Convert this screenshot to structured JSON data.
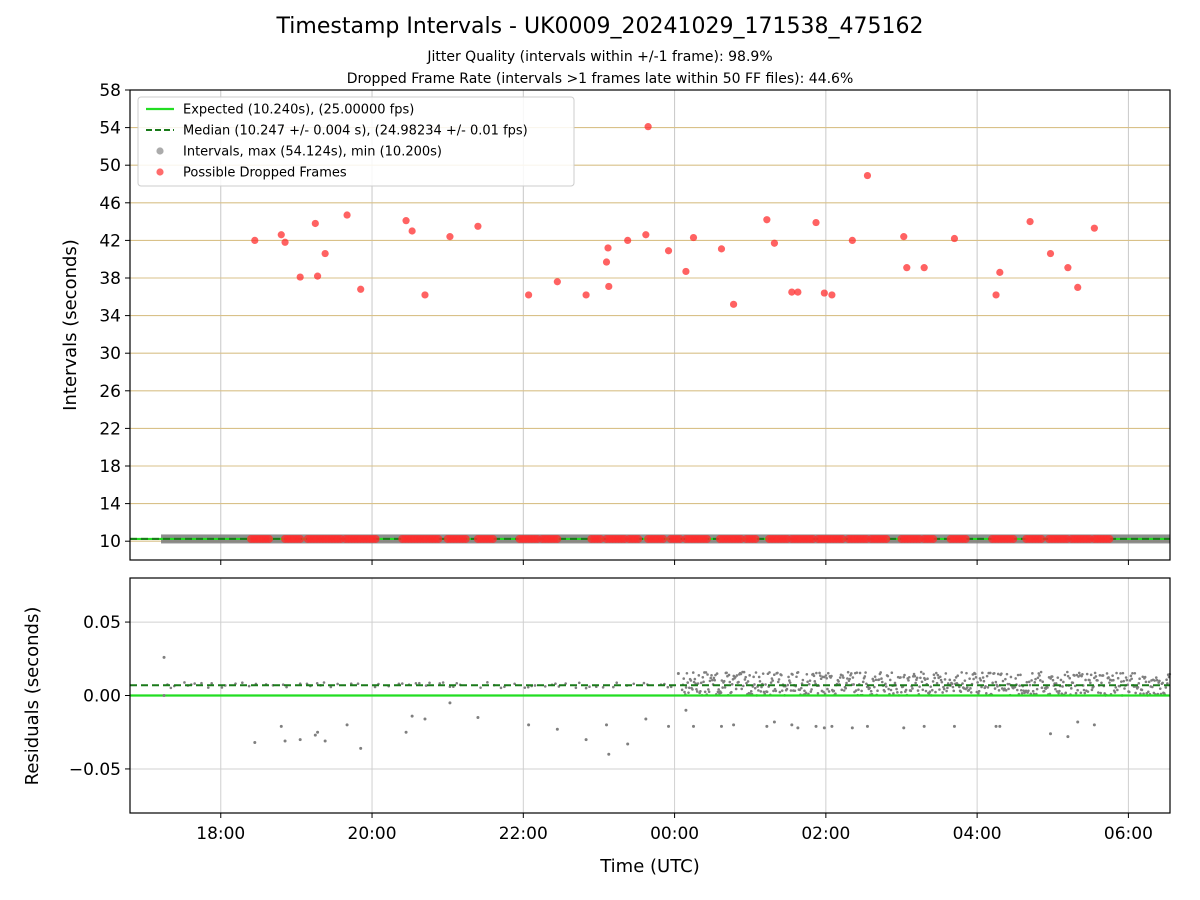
{
  "chart_data": [
    {
      "type": "scatter",
      "title": "Timestamp Intervals - UK0009_20241029_171538_475162",
      "subtitles": [
        "Jitter Quality (intervals within +/-1 frame): 98.9%",
        "Dropped Frame Rate (intervals >1 frames late within 50 FF files): 44.6%"
      ],
      "xlabel": "Time (UTC)",
      "ylabel": "Intervals (seconds)",
      "x_unit": "hours since 00:00 UTC (negative = before midnight)",
      "xlim": [
        -7.2,
        6.55
      ],
      "ylim": [
        8,
        58
      ],
      "yticks": [
        10,
        14,
        18,
        22,
        26,
        30,
        34,
        38,
        42,
        46,
        50,
        54,
        58
      ],
      "xticks": [
        {
          "value": -6,
          "label": "18:00"
        },
        {
          "value": -4,
          "label": "20:00"
        },
        {
          "value": -2,
          "label": "22:00"
        },
        {
          "value": 0,
          "label": "00:00"
        },
        {
          "value": 2,
          "label": "02:00"
        },
        {
          "value": 4,
          "label": "04:00"
        },
        {
          "value": 6,
          "label": "06:00"
        }
      ],
      "grid": "vertical lines at x ticks; horizontal gold lines at y ticks",
      "legend_position": "top-left",
      "series": [
        {
          "name": "Expected (10.240s), (25.00000 fps)",
          "kind": "line",
          "style": "solid",
          "color": "#22dd22",
          "y": 10.24
        },
        {
          "name": "Median (10.247 +/- 0.004 s), (24.98234 +/- 0.01 fps)",
          "kind": "line",
          "style": "dashed",
          "color": "#1a7a1a",
          "y": 10.247
        },
        {
          "name": "Intervals, max (54.124s), min (10.200s)",
          "kind": "scatter",
          "color": "#888888",
          "band": {
            "x_start": -6.75,
            "x_end": 6.55,
            "y": 10.24
          }
        },
        {
          "name": "Possible Dropped Frames",
          "kind": "scatter",
          "color": "#ff2d2d",
          "points": [
            [
              -5.55,
              42.0
            ],
            [
              -5.2,
              42.6
            ],
            [
              -5.15,
              41.8
            ],
            [
              -4.95,
              38.1
            ],
            [
              -4.75,
              43.8
            ],
            [
              -4.72,
              38.2
            ],
            [
              -4.62,
              40.6
            ],
            [
              -4.33,
              44.7
            ],
            [
              -4.15,
              36.8
            ],
            [
              -3.55,
              44.1
            ],
            [
              -3.47,
              43.0
            ],
            [
              -3.3,
              36.2
            ],
            [
              -2.97,
              42.4
            ],
            [
              -2.6,
              43.5
            ],
            [
              -1.93,
              36.2
            ],
            [
              -1.55,
              37.6
            ],
            [
              -1.17,
              36.2
            ],
            [
              -0.9,
              39.7
            ],
            [
              -0.88,
              41.2
            ],
            [
              -0.87,
              37.1
            ],
            [
              -0.62,
              42.0
            ],
            [
              -0.35,
              54.1
            ],
            [
              -0.38,
              42.6
            ],
            [
              -0.08,
              40.9
            ],
            [
              0.15,
              38.7
            ],
            [
              0.25,
              42.3
            ],
            [
              0.62,
              41.1
            ],
            [
              0.78,
              35.2
            ],
            [
              1.22,
              44.2
            ],
            [
              1.32,
              41.7
            ],
            [
              1.55,
              36.5
            ],
            [
              1.63,
              36.5
            ],
            [
              1.87,
              43.9
            ],
            [
              1.98,
              36.4
            ],
            [
              2.08,
              36.2
            ],
            [
              2.35,
              42.0
            ],
            [
              2.55,
              48.9
            ],
            [
              3.03,
              42.4
            ],
            [
              3.07,
              39.1
            ],
            [
              3.3,
              39.1
            ],
            [
              3.7,
              42.2
            ],
            [
              4.25,
              36.2
            ],
            [
              4.3,
              38.6
            ],
            [
              4.7,
              44.0
            ],
            [
              4.97,
              40.6
            ],
            [
              5.2,
              39.1
            ],
            [
              5.33,
              37.0
            ],
            [
              5.55,
              43.3
            ]
          ],
          "band_segments": [
            [
              -5.6,
              -5.35
            ],
            [
              -5.15,
              -4.92
            ],
            [
              -4.85,
              -4.4
            ],
            [
              -4.35,
              -3.95
            ],
            [
              -3.6,
              -3.1
            ],
            [
              -3.0,
              -2.75
            ],
            [
              -2.6,
              -2.4
            ],
            [
              -2.05,
              -1.8
            ],
            [
              -1.75,
              -1.55
            ],
            [
              -1.1,
              -0.95
            ],
            [
              -0.9,
              -0.65
            ],
            [
              -0.6,
              -0.45
            ],
            [
              -0.35,
              -0.15
            ],
            [
              -0.05,
              0.1
            ],
            [
              0.15,
              0.45
            ],
            [
              0.6,
              0.9
            ],
            [
              0.95,
              1.1
            ],
            [
              1.25,
              1.5
            ],
            [
              1.55,
              1.85
            ],
            [
              1.9,
              2.25
            ],
            [
              2.3,
              2.55
            ],
            [
              2.6,
              2.8
            ],
            [
              3.0,
              3.25
            ],
            [
              3.3,
              3.45
            ],
            [
              3.65,
              3.85
            ],
            [
              4.2,
              4.5
            ],
            [
              4.65,
              4.85
            ],
            [
              4.95,
              5.2
            ],
            [
              5.25,
              5.5
            ],
            [
              5.55,
              5.75
            ]
          ]
        }
      ]
    },
    {
      "type": "scatter",
      "xlabel": "Time (UTC)",
      "ylabel": "Residuals (seconds)",
      "xlim": [
        -7.2,
        6.55
      ],
      "ylim": [
        -0.08,
        0.08
      ],
      "yticks": [
        {
          "value": 0.05,
          "label": "0.05"
        },
        {
          "value": 0.0,
          "label": "0.00"
        },
        {
          "value": -0.05,
          "label": "−0.05"
        }
      ],
      "grid": "on",
      "series": [
        {
          "name": "Expected",
          "kind": "line",
          "style": "solid",
          "color": "#22dd22",
          "y": 0.0
        },
        {
          "name": "Median",
          "kind": "line",
          "style": "dashed",
          "color": "#1a7a1a",
          "y": 0.007
        },
        {
          "name": "Residuals",
          "kind": "scatter",
          "color": "#7f7f7f",
          "band_sparse": {
            "x_start": -6.75,
            "x_end": 0.0,
            "y_center": 0.007,
            "spread": 0.002
          },
          "band_dense": {
            "x_start": 0.1,
            "x_end": 6.55,
            "y_min": 0.0,
            "y_max": 0.016
          },
          "points": [
            [
              -6.75,
              0.026
            ],
            [
              -6.75,
              0.0
            ],
            [
              -5.55,
              -0.032
            ],
            [
              -5.2,
              -0.021
            ],
            [
              -5.15,
              -0.031
            ],
            [
              -4.95,
              -0.03
            ],
            [
              -4.75,
              -0.027
            ],
            [
              -4.72,
              -0.025
            ],
            [
              -4.62,
              -0.031
            ],
            [
              -4.33,
              -0.02
            ],
            [
              -4.15,
              -0.036
            ],
            [
              -3.55,
              -0.025
            ],
            [
              -3.47,
              -0.014
            ],
            [
              -3.3,
              -0.016
            ],
            [
              -2.97,
              -0.005
            ],
            [
              -2.6,
              -0.015
            ],
            [
              -1.93,
              -0.02
            ],
            [
              -1.55,
              -0.023
            ],
            [
              -1.17,
              -0.03
            ],
            [
              -0.9,
              -0.02
            ],
            [
              -0.87,
              -0.04
            ],
            [
              -0.62,
              -0.033
            ],
            [
              -0.38,
              -0.016
            ],
            [
              -0.08,
              -0.021
            ],
            [
              0.05,
              0.015
            ],
            [
              0.15,
              -0.01
            ],
            [
              0.25,
              -0.021
            ],
            [
              0.62,
              -0.021
            ],
            [
              0.78,
              -0.02
            ],
            [
              1.22,
              -0.021
            ],
            [
              1.32,
              -0.018
            ],
            [
              1.55,
              -0.02
            ],
            [
              1.63,
              -0.022
            ],
            [
              1.87,
              -0.021
            ],
            [
              1.98,
              -0.022
            ],
            [
              2.08,
              -0.021
            ],
            [
              2.35,
              -0.022
            ],
            [
              2.55,
              -0.021
            ],
            [
              3.03,
              -0.022
            ],
            [
              3.3,
              -0.021
            ],
            [
              3.7,
              -0.021
            ],
            [
              4.25,
              -0.021
            ],
            [
              4.3,
              -0.021
            ],
            [
              4.97,
              -0.026
            ],
            [
              5.2,
              -0.028
            ],
            [
              5.33,
              -0.018
            ],
            [
              5.55,
              -0.02
            ]
          ]
        }
      ]
    }
  ]
}
